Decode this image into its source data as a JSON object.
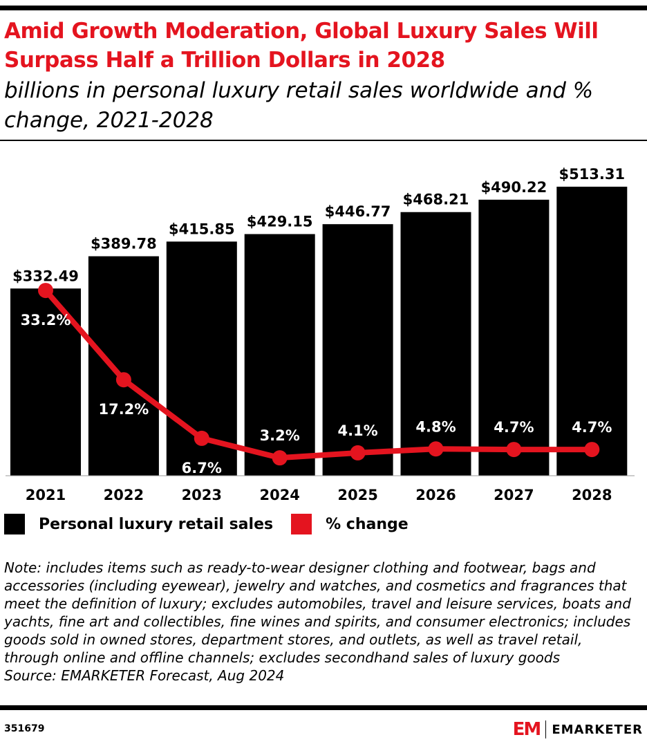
{
  "title": "Amid Growth Moderation, Global Luxury Sales Will Surpass Half a Trillion Dollars in 2028",
  "subtitle": "billions in personal luxury retail sales worldwide and % change, 2021-2028",
  "chart_data": {
    "type": "bar",
    "categories": [
      "2021",
      "2022",
      "2023",
      "2024",
      "2025",
      "2026",
      "2027",
      "2028"
    ],
    "series": [
      {
        "name": "Personal luxury retail sales",
        "type": "bar",
        "color": "#000000",
        "values": [
          332.49,
          389.78,
          415.85,
          429.15,
          446.77,
          468.21,
          490.22,
          513.31
        ],
        "labels": [
          "$332.49",
          "$389.78",
          "$415.85",
          "$429.15",
          "$446.77",
          "$468.21",
          "$490.22",
          "$513.31"
        ]
      },
      {
        "name": "% change",
        "type": "line",
        "color": "#e4141f",
        "values": [
          33.2,
          17.2,
          6.7,
          3.2,
          4.1,
          4.8,
          4.7,
          4.7
        ],
        "labels": [
          "33.2%",
          "17.2%",
          "6.7%",
          "3.2%",
          "4.1%",
          "4.8%",
          "4.7%",
          "4.7%"
        ]
      }
    ],
    "legend_position": "bottom-left",
    "grid": false
  },
  "note": "Note: includes items such as ready-to-wear designer clothing and footwear, bags and accessories (including eyewear), jewelry and watches, and cosmetics and fragrances that meet the definition of luxury; excludes automobiles, travel and leisure services, boats and yachts, fine art and collectibles, fine wines and spirits, and consumer electronics; includes goods sold in owned stores, department stores, and outlets, as well as travel retail, through online and offline channels; excludes secondhand sales of luxury goods",
  "source": "Source: EMARKETER Forecast, Aug 2024",
  "chart_id": "351679",
  "logo": {
    "mark": "EM",
    "text": "EMARKETER"
  }
}
